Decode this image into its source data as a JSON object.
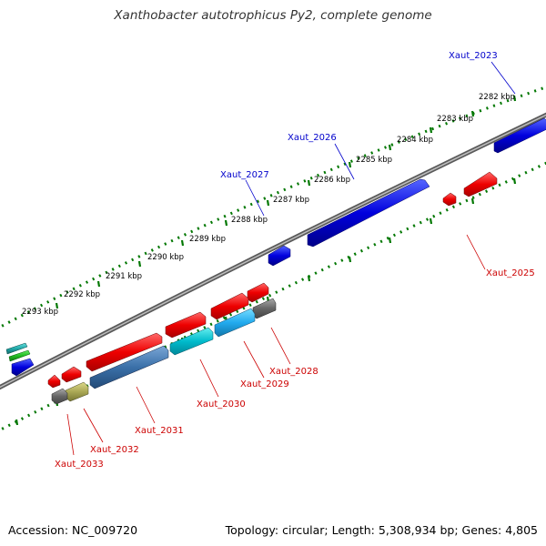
{
  "title": "Xanthobacter autotrophicus Py2, complete genome",
  "footer": {
    "accession": "Accession: NC_009720",
    "summary": "Topology: circular; Length: 5,308,934 bp; Genes: 4,805"
  },
  "ticks": [
    "2282 kbp",
    "2283 kbp",
    "2284 kbp",
    "2285 kbp",
    "2286 kbp",
    "2287 kbp",
    "2288 kbp",
    "2289 kbp",
    "2290 kbp",
    "2291 kbp",
    "2292 kbp",
    "2293 kbp"
  ],
  "genes_forward": [
    "Xaut_2023",
    "Xaut_2026",
    "Xaut_2027"
  ],
  "genes_reverse": [
    "Xaut_2025",
    "Xaut_2028",
    "Xaut_2029",
    "Xaut_2030",
    "Xaut_2031",
    "Xaut_2032",
    "Xaut_2033"
  ],
  "colors": {
    "forward_label": "#0000cc",
    "reverse_label": "#cc0000",
    "backbone": "#777777",
    "tick": "#007700",
    "gene_blue": "#0000dd",
    "gene_red": "#ee0000",
    "gene_cyan": "#00bbcc",
    "gene_skyblue": "#22aaee",
    "gene_steelblue": "#3a70a8",
    "gene_gray": "#666666",
    "gene_olive": "#aaa855",
    "gene_green": "#22bb22"
  }
}
